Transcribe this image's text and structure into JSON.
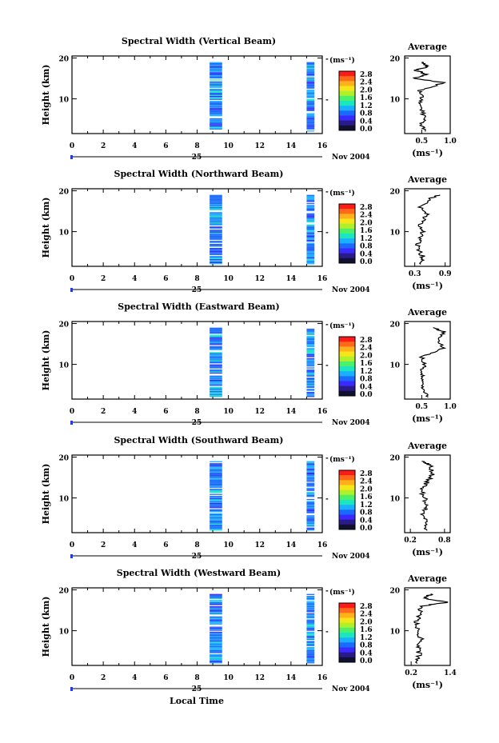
{
  "xlabel": "Local Time",
  "date_label": "Nov 2004",
  "day_label": "25",
  "colorbar": {
    "unit": "(ms⁻¹)",
    "ticks": [
      "2.8",
      "2.4",
      "2.0",
      "1.6",
      "1.2",
      "0.8",
      "0.4",
      "0.0"
    ],
    "colors": [
      "#ff1a1a",
      "#ff6a1a",
      "#ffb01a",
      "#f5e61a",
      "#b0f02a",
      "#4cf06a",
      "#1ae6c0",
      "#1ab0ff",
      "#1a6aff",
      "#3a2aff",
      "#2a1a8a",
      "#101030"
    ]
  },
  "xticks": [
    "0",
    "2",
    "4",
    "6",
    "8",
    "10",
    "12",
    "14",
    "16"
  ],
  "yticks": [
    "20",
    "10"
  ],
  "ylabel": "Height (km)",
  "avg_ylabel_ticks": [
    "20",
    "10"
  ],
  "chart_data": [
    {
      "type": "heatmap",
      "title": "Spectral Width (Vertical Beam)",
      "x_range": [
        0,
        16
      ],
      "y_range": [
        1.5,
        20.5
      ],
      "data_blocks": [
        {
          "x": [
            8.8,
            9.6
          ],
          "y": [
            2,
            19
          ],
          "color": "#1a6aff",
          "note": "mostly 0.4-0.8"
        },
        {
          "x": [
            15.0,
            15.5
          ],
          "y": [
            2,
            19
          ],
          "color": "#1a6aff",
          "note": "mostly 0.4-0.8"
        }
      ],
      "average": {
        "title": "Average",
        "xlabel": "(ms⁻¹)",
        "xticks": [
          "0.5",
          "1.0"
        ],
        "x_range": [
          0.2,
          1.0
        ],
        "profile": [
          [
            2,
            0.55
          ],
          [
            4,
            0.5
          ],
          [
            6,
            0.55
          ],
          [
            8,
            0.45
          ],
          [
            10,
            0.5
          ],
          [
            12,
            0.45
          ],
          [
            14,
            0.9
          ],
          [
            15,
            0.35
          ],
          [
            16,
            0.6
          ],
          [
            17,
            0.4
          ],
          [
            18,
            0.6
          ],
          [
            19,
            0.5
          ]
        ]
      }
    },
    {
      "type": "heatmap",
      "title": "Spectral Width (Northward Beam)",
      "x_range": [
        0,
        16
      ],
      "y_range": [
        1.5,
        20.5
      ],
      "data_blocks": [
        {
          "x": [
            8.8,
            9.6
          ],
          "y": [
            2,
            19
          ],
          "color": "#1a6aff"
        },
        {
          "x": [
            15.0,
            15.5
          ],
          "y": [
            2,
            19
          ],
          "color": "#1a6aff"
        }
      ],
      "average": {
        "title": "Average",
        "xlabel": "(ms⁻¹)",
        "xticks": [
          "0.3",
          "0.9"
        ],
        "x_range": [
          0.1,
          1.0
        ],
        "profile": [
          [
            2,
            0.4
          ],
          [
            4,
            0.45
          ],
          [
            6,
            0.35
          ],
          [
            8,
            0.4
          ],
          [
            10,
            0.45
          ],
          [
            12,
            0.4
          ],
          [
            14,
            0.55
          ],
          [
            16,
            0.4
          ],
          [
            18,
            0.6
          ],
          [
            19,
            0.8
          ]
        ]
      }
    },
    {
      "type": "heatmap",
      "title": "Spectral Width (Eastward Beam)",
      "x_range": [
        0,
        16
      ],
      "y_range": [
        1.5,
        20.5
      ],
      "data_blocks": [
        {
          "x": [
            8.8,
            9.6
          ],
          "y": [
            2,
            19
          ],
          "color": "#1a6aff"
        },
        {
          "x": [
            15.0,
            15.5
          ],
          "y": [
            2,
            19
          ],
          "color": "#1a6aff"
        }
      ],
      "average": {
        "title": "Average",
        "xlabel": "(ms⁻¹)",
        "xticks": [
          "0.5",
          "1.0"
        ],
        "x_range": [
          0.2,
          1.0
        ],
        "profile": [
          [
            2,
            0.6
          ],
          [
            4,
            0.5
          ],
          [
            6,
            0.55
          ],
          [
            8,
            0.5
          ],
          [
            10,
            0.55
          ],
          [
            12,
            0.5
          ],
          [
            14,
            0.9
          ],
          [
            16,
            0.8
          ],
          [
            18,
            0.9
          ],
          [
            19,
            0.7
          ]
        ]
      }
    },
    {
      "type": "heatmap",
      "title": "Spectral Width (Southward Beam)",
      "x_range": [
        0,
        16
      ],
      "y_range": [
        1.5,
        20.5
      ],
      "data_blocks": [
        {
          "x": [
            8.8,
            9.6
          ],
          "y": [
            2,
            19
          ],
          "color": "#1a6aff"
        },
        {
          "x": [
            15.0,
            15.5
          ],
          "y": [
            2,
            19
          ],
          "color": "#1a6aff"
        }
      ],
      "average": {
        "title": "Average",
        "xlabel": "(ms⁻¹)",
        "xticks": [
          "0.2",
          "0.8"
        ],
        "x_range": [
          0.1,
          0.9
        ],
        "profile": [
          [
            2,
            0.45
          ],
          [
            4,
            0.5
          ],
          [
            6,
            0.4
          ],
          [
            8,
            0.5
          ],
          [
            10,
            0.45
          ],
          [
            12,
            0.4
          ],
          [
            14,
            0.5
          ],
          [
            16,
            0.6
          ],
          [
            18,
            0.55
          ],
          [
            19,
            0.4
          ]
        ]
      }
    },
    {
      "type": "heatmap",
      "title": "Spectral Width (Westward Beam)",
      "x_range": [
        0,
        16
      ],
      "y_range": [
        1.5,
        20.5
      ],
      "data_blocks": [
        {
          "x": [
            8.8,
            9.6
          ],
          "y": [
            2,
            19
          ],
          "color": "#1a6aff"
        },
        {
          "x": [
            15.0,
            15.5
          ],
          "y": [
            2,
            19
          ],
          "color": "#1a6aff"
        }
      ],
      "average": {
        "title": "Average",
        "xlabel": "(ms⁻¹)",
        "xticks": [
          "0.2",
          "1.4"
        ],
        "x_range": [
          0.0,
          1.4
        ],
        "profile": [
          [
            2,
            0.4
          ],
          [
            4,
            0.45
          ],
          [
            6,
            0.4
          ],
          [
            8,
            0.5
          ],
          [
            10,
            0.4
          ],
          [
            12,
            0.35
          ],
          [
            14,
            0.45
          ],
          [
            16,
            0.5
          ],
          [
            17,
            1.3
          ],
          [
            18,
            0.6
          ],
          [
            19,
            0.8
          ]
        ]
      }
    }
  ]
}
